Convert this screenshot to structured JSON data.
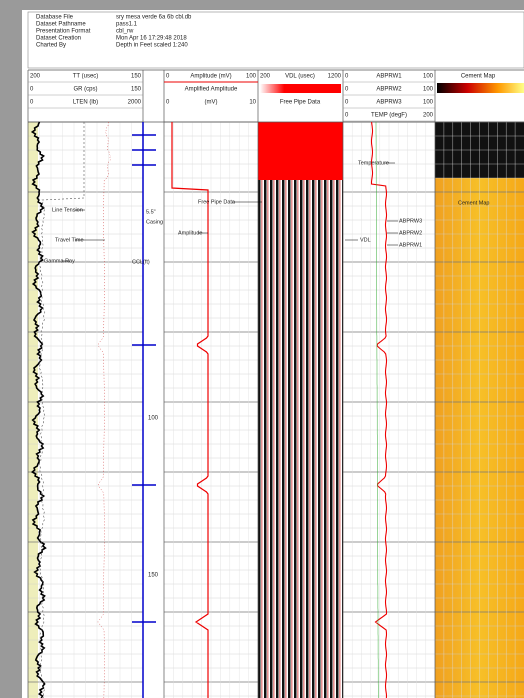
{
  "header": [
    [
      "Database File",
      "sry mesa verde 6a 6b cbl.db"
    ],
    [
      "Dataset Pathname",
      "pass1.1"
    ],
    [
      "Presentation Format",
      "cbl_rw"
    ],
    [
      "Dataset Creation",
      "Mon Apr 16 17:29:48 2018"
    ],
    [
      "Charted By",
      "Depth in Feet scaled 1:240"
    ]
  ],
  "tracks": {
    "log": [
      [
        "200",
        "TT (usec)",
        "150"
      ],
      [
        "0",
        "GR (cps)",
        "150"
      ],
      [
        "0",
        "LTEN (lb)",
        "2000"
      ]
    ],
    "amplitude": {
      "rows": [
        [
          "0",
          "Amplitude (mV)",
          "100"
        ],
        [
          "0",
          "(mV)",
          "10"
        ]
      ],
      "title": "Amplified Amplitude"
    },
    "vdl": {
      "row": [
        "200",
        "VDL (usec)",
        "1200"
      ],
      "title": "Free Pipe Data"
    },
    "abprw": [
      [
        "0",
        "ABPRW1",
        "100"
      ],
      [
        "0",
        "ABPRW2",
        "100"
      ],
      [
        "0",
        "ABPRW3",
        "100"
      ],
      [
        "0",
        "TEMP (degF)",
        "200"
      ]
    ],
    "cement": "Cement Map"
  },
  "annotations": {
    "line_tension": "Line Tension",
    "travel_time": "Travel Time",
    "gamma_ray": "Gamma Ray",
    "free_pipe": "Free Pipe Data",
    "amplitude": "Amplitude",
    "temperature": "Temperature",
    "vdl": "VDL",
    "abprw3": "ABPRW3",
    "abprw2": "ABPRW2",
    "abprw1": "ABPRW1",
    "cement_map": "Cement Map",
    "casing_size": "5.5\"",
    "casing": "Casing",
    "ccl": "CCL(ft)"
  },
  "depths": [
    "100",
    "150"
  ]
}
